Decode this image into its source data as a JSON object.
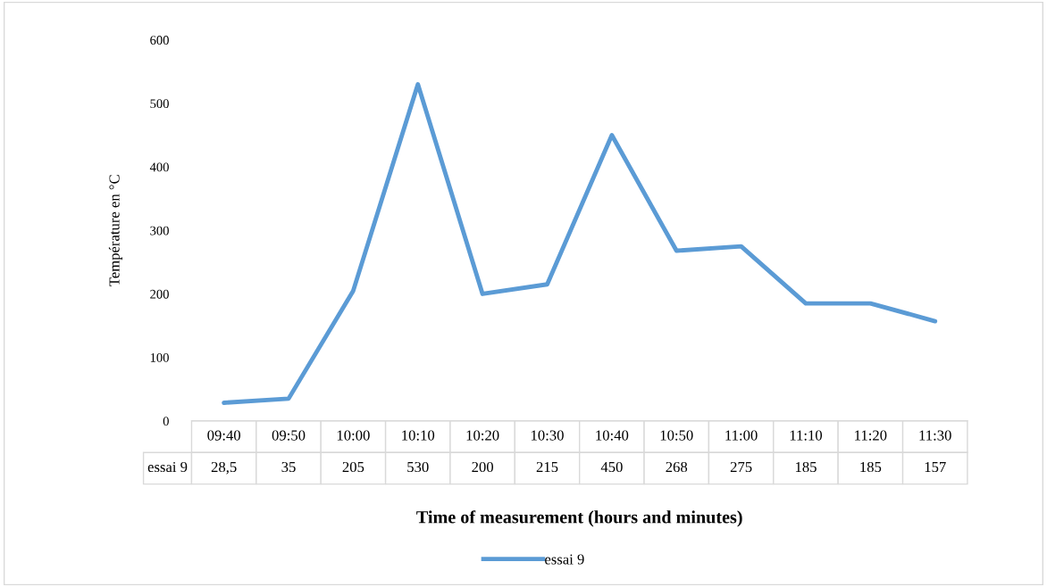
{
  "chart_data": {
    "type": "line",
    "xlabel": "Time of measurement (hours and minutes)",
    "ylabel": "Température en °C",
    "categories": [
      "09:40",
      "09:50",
      "10:00",
      "10:10",
      "10:20",
      "10:30",
      "10:40",
      "10:50",
      "11:00",
      "11:10",
      "11:20",
      "11:30"
    ],
    "series": [
      {
        "name": "essai 9",
        "color": "#5b9bd5",
        "values": [
          28.5,
          35,
          205,
          530,
          200,
          215,
          450,
          268,
          275,
          185,
          185,
          157
        ],
        "value_labels": [
          "28,5",
          "35",
          "205",
          "530",
          "200",
          "215",
          "450",
          "268",
          "275",
          "185",
          "185",
          "157"
        ]
      }
    ],
    "ylim": [
      0,
      600
    ],
    "yticks": [
      0,
      100,
      200,
      300,
      400,
      500,
      600
    ],
    "grid": false,
    "legend": "bottom",
    "marker": "none",
    "line_style": "solid"
  }
}
